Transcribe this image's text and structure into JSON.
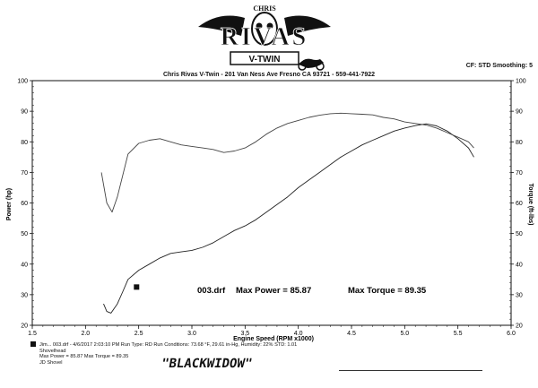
{
  "header": {
    "logo": {
      "text_top": "CHRIS",
      "text_main": "RIVAS",
      "text_sub": "V-TWIN"
    },
    "shop_line": "Chris Rivas V-Twin - 201 Van Ness Ave Fresno CA 93721 - 559-441-7922",
    "cf_line": "CF: STD  Smoothing: 5"
  },
  "annotation": {
    "file": "003.drf",
    "max_power_label": "Max Power = 85.87",
    "max_torque_label": "Max Torque = 89.35"
  },
  "run_info": {
    "line1": "Jim...          003.drf - 4/6/2017 2:03:10 PM  Run Type: RD  Run Conditions: 73.68 °F, 29.61 in-Hg, Humidity: 22%  STD: 1.01",
    "line2": "Shovelhead",
    "line3": "Max Power = 85.87  Max Torque = 89.35",
    "line4": "JD Shovel"
  },
  "handwritten_note": "\"BLACKWIDOW\"",
  "chart_data": {
    "type": "line",
    "xlabel": "Engine Speed (RPM x1000)",
    "ylabel_left": "Power (hp)",
    "ylabel_right": "Torque (ft-lbs)",
    "xlim": [
      1.5,
      6.0
    ],
    "ylim": [
      20,
      100
    ],
    "x_ticks": [
      "1.5",
      "2.0",
      "2.5",
      "3.0",
      "3.5",
      "4.0",
      "4.5",
      "5.0",
      "5.5",
      "6.0"
    ],
    "y_ticks_left": [
      "20",
      "30",
      "40",
      "50",
      "60",
      "70",
      "80",
      "90",
      "100"
    ],
    "y_ticks_right": [
      "20",
      "30",
      "40",
      "50",
      "60",
      "70",
      "80",
      "90",
      "100"
    ],
    "grid": false,
    "series": [
      {
        "name": "Power (hp)",
        "color": "#222222",
        "x": [
          2.17,
          2.2,
          2.24,
          2.3,
          2.35,
          2.4,
          2.5,
          2.6,
          2.7,
          2.8,
          2.9,
          3.0,
          3.1,
          3.2,
          3.3,
          3.4,
          3.5,
          3.6,
          3.7,
          3.8,
          3.9,
          4.0,
          4.1,
          4.2,
          4.3,
          4.4,
          4.5,
          4.6,
          4.7,
          4.8,
          4.9,
          5.0,
          5.1,
          5.2,
          5.3,
          5.4,
          5.5,
          5.6,
          5.65
        ],
        "y": [
          27,
          24.5,
          24,
          27,
          31,
          35,
          38,
          40,
          42,
          43.5,
          44,
          44.5,
          45.5,
          47,
          49,
          51,
          52.5,
          54.5,
          57,
          59.5,
          62,
          65,
          67.5,
          70,
          72.5,
          75,
          77,
          79,
          80.5,
          82,
          83.5,
          84.5,
          85.3,
          85.87,
          85.2,
          83.5,
          81,
          78,
          75
        ]
      },
      {
        "name": "Torque (ft-lbs)",
        "color": "#444444",
        "x": [
          2.15,
          2.2,
          2.25,
          2.3,
          2.4,
          2.5,
          2.6,
          2.7,
          2.8,
          2.9,
          3.0,
          3.1,
          3.2,
          3.3,
          3.4,
          3.5,
          3.6,
          3.7,
          3.8,
          3.9,
          4.0,
          4.1,
          4.2,
          4.3,
          4.4,
          4.5,
          4.6,
          4.7,
          4.8,
          4.9,
          5.0,
          5.1,
          5.2,
          5.3,
          5.4,
          5.5,
          5.6,
          5.65
        ],
        "y": [
          70,
          60,
          57,
          62,
          76,
          79.5,
          80.5,
          81,
          80,
          79,
          78.5,
          78,
          77.5,
          76.5,
          77,
          78,
          80,
          82.5,
          84.5,
          86,
          87,
          88,
          88.7,
          89.2,
          89.35,
          89.2,
          89,
          88.8,
          88,
          87.5,
          86.5,
          86,
          85.5,
          84.5,
          83,
          81.5,
          80,
          78
        ]
      }
    ],
    "markers": [
      {
        "x": 2.48,
        "y": 32.5
      }
    ]
  }
}
